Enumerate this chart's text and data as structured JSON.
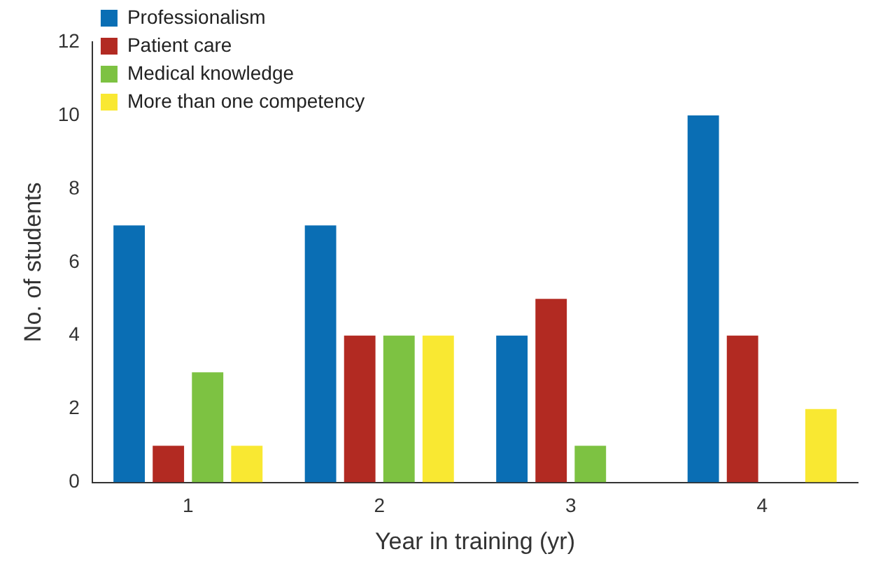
{
  "chart_data": {
    "type": "bar",
    "xlabel": "Year in training (yr)",
    "ylabel": "No. of students",
    "categories": [
      "1",
      "2",
      "3",
      "4"
    ],
    "series": [
      {
        "name": "Professionalism",
        "color": "#0a6eb4",
        "values": [
          7,
          7,
          4,
          10
        ]
      },
      {
        "name": "Patient care",
        "color": "#b22a22",
        "values": [
          1,
          4,
          5,
          4
        ]
      },
      {
        "name": "Medical knowledge",
        "color": "#7dc242",
        "values": [
          3,
          4,
          1,
          0
        ]
      },
      {
        "name": "More than one competency",
        "color": "#f9e832",
        "values": [
          1,
          4,
          0,
          2
        ]
      }
    ],
    "ylim": [
      0,
      12
    ],
    "yticks": [
      0,
      2,
      4,
      6,
      8,
      10,
      12
    ],
    "grid": false,
    "legend": "top left"
  }
}
